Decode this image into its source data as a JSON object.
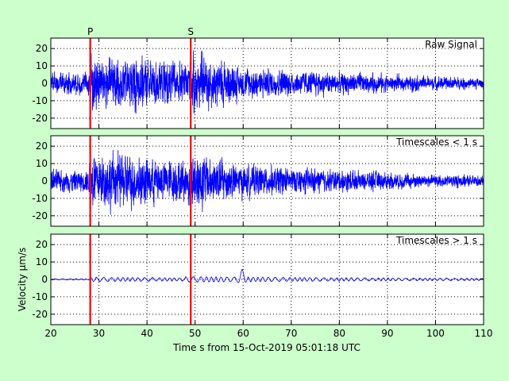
{
  "chart_data": [
    {
      "type": "line",
      "panel_label": "Raw Signal",
      "amplitude": 24,
      "envelope": "raw",
      "xlim": [
        20,
        110
      ],
      "ylim": [
        -26,
        26
      ],
      "yticks": [
        -20,
        -10,
        0,
        10,
        20
      ],
      "ylabel": "",
      "grid": true,
      "picks": [
        {
          "label": "P",
          "x": 28.2
        },
        {
          "label": "S",
          "x": 49.1
        }
      ],
      "series": [
        {
          "color": "#0000ff"
        }
      ]
    },
    {
      "type": "line",
      "panel_label": "Timescales < 1 s",
      "amplitude": 24,
      "envelope": "raw",
      "xlim": [
        20,
        110
      ],
      "ylim": [
        -26,
        26
      ],
      "yticks": [
        -20,
        -10,
        0,
        10,
        20
      ],
      "ylabel": "",
      "grid": true,
      "picks": [
        {
          "label": "",
          "x": 28.2
        },
        {
          "label": "",
          "x": 49.1
        }
      ],
      "series": [
        {
          "color": "#0000ff"
        }
      ]
    },
    {
      "type": "line",
      "panel_label": "Timescales > 1 s",
      "amplitude": 2.5,
      "envelope": "smooth",
      "peak": {
        "x": 59.8,
        "y": 4.5
      },
      "xlim": [
        20,
        110
      ],
      "ylim": [
        -26,
        26
      ],
      "yticks": [
        -20,
        -10,
        0,
        10,
        20
      ],
      "ylabel": "Velocity μm/s",
      "grid": true,
      "picks": [
        {
          "label": "",
          "x": 28.2
        },
        {
          "label": "",
          "x": 49.1
        }
      ],
      "series": [
        {
          "color": "#0000ff"
        }
      ]
    }
  ],
  "xaxis": {
    "ticks": [
      20,
      30,
      40,
      50,
      60,
      70,
      80,
      90,
      100,
      110
    ],
    "label": "Time s from 15-Oct-2019 05:01:18 UTC"
  },
  "colors": {
    "background": "#ccffcc",
    "panel": "#ffffff",
    "trace": "#0000ff",
    "picks": "#ff0000",
    "grid": "#000000"
  }
}
